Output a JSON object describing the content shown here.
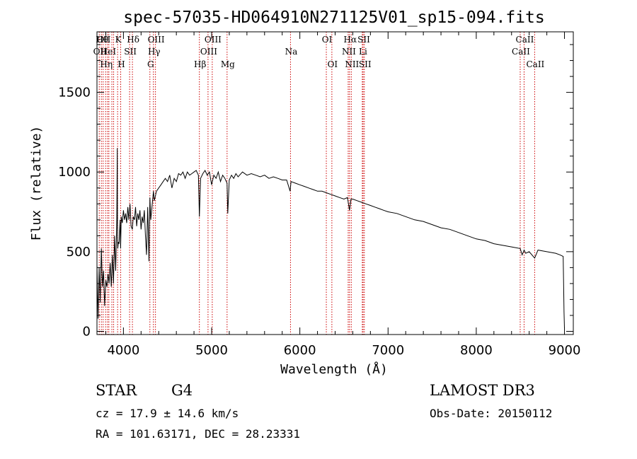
{
  "chart_data": {
    "type": "line",
    "title": "spec-57035-HD064910N271125V01_sp15-094.fits",
    "xlabel": "Wavelength (Å)",
    "ylabel": "Flux (relative)",
    "xlim": [
      3700,
      9100
    ],
    "ylim": [
      -20,
      1880
    ],
    "xticks": [
      4000,
      5000,
      6000,
      7000,
      8000,
      9000
    ],
    "yticks": [
      0,
      500,
      1000,
      1500
    ],
    "xtick_labels": [
      "4000",
      "5000",
      "6000",
      "7000",
      "8000",
      "9000"
    ],
    "ytick_labels": [
      "0",
      "500",
      "1000",
      "1500"
    ],
    "grid": false,
    "series": [
      {
        "name": "spectrum",
        "x": [
          3700,
          3712,
          3725,
          3737,
          3750,
          3762,
          3775,
          3787,
          3800,
          3812,
          3825,
          3837,
          3850,
          3862,
          3875,
          3887,
          3900,
          3912,
          3925,
          3930,
          3933,
          3936,
          3942,
          3950,
          3962,
          3968,
          3975,
          3987,
          4000,
          4012,
          4025,
          4037,
          4050,
          4062,
          4075,
          4087,
          4101,
          4112,
          4125,
          4137,
          4150,
          4162,
          4175,
          4187,
          4200,
          4212,
          4225,
          4237,
          4250,
          4262,
          4275,
          4290,
          4300,
          4310,
          4320,
          4330,
          4340,
          4350,
          4375,
          4400,
          4425,
          4450,
          4475,
          4500,
          4525,
          4550,
          4575,
          4600,
          4625,
          4650,
          4675,
          4700,
          4725,
          4750,
          4775,
          4800,
          4825,
          4850,
          4861,
          4875,
          4900,
          4925,
          4950,
          4975,
          5000,
          5025,
          5050,
          5075,
          5100,
          5125,
          5150,
          5175,
          5183,
          5200,
          5225,
          5250,
          5275,
          5300,
          5350,
          5400,
          5450,
          5500,
          5550,
          5600,
          5650,
          5700,
          5750,
          5800,
          5850,
          5890,
          5900,
          5950,
          6000,
          6050,
          6100,
          6150,
          6200,
          6250,
          6300,
          6350,
          6400,
          6450,
          6500,
          6540,
          6563,
          6580,
          6600,
          6650,
          6700,
          6750,
          6800,
          6850,
          6900,
          6950,
          7000,
          7100,
          7200,
          7300,
          7400,
          7500,
          7600,
          7700,
          7800,
          7900,
          8000,
          8100,
          8200,
          8300,
          8400,
          8498,
          8520,
          8542,
          8560,
          8600,
          8662,
          8700,
          8750,
          8800,
          8850,
          8900,
          8950,
          8985,
          8990,
          8995,
          9000
        ],
        "values": [
          420,
          80,
          400,
          180,
          520,
          280,
          380,
          160,
          320,
          280,
          360,
          300,
          430,
          280,
          480,
          300,
          600,
          380,
          700,
          1150,
          600,
          520,
          560,
          550,
          700,
          520,
          720,
          680,
          760,
          700,
          740,
          680,
          780,
          700,
          800,
          660,
          640,
          720,
          700,
          780,
          660,
          740,
          700,
          760,
          640,
          720,
          680,
          760,
          600,
          480,
          780,
          440,
          840,
          700,
          760,
          820,
          880,
          820,
          880,
          900,
          920,
          940,
          960,
          940,
          980,
          900,
          960,
          940,
          990,
          980,
          1000,
          960,
          1000,
          980,
          990,
          1000,
          1010,
          980,
          720,
          960,
          990,
          1010,
          980,
          1000,
          920,
          980,
          960,
          1000,
          940,
          980,
          960,
          930,
          740,
          950,
          980,
          960,
          990,
          970,
          1000,
          980,
          990,
          980,
          970,
          980,
          960,
          970,
          960,
          950,
          950,
          880,
          940,
          930,
          920,
          910,
          900,
          890,
          880,
          880,
          870,
          860,
          850,
          840,
          830,
          840,
          760,
          830,
          830,
          820,
          810,
          800,
          790,
          780,
          770,
          760,
          750,
          740,
          720,
          700,
          690,
          670,
          650,
          640,
          620,
          600,
          580,
          570,
          550,
          540,
          530,
          520,
          480,
          510,
          490,
          500,
          460,
          510,
          505,
          500,
          495,
          490,
          480,
          470,
          300,
          120,
          20
        ]
      }
    ],
    "line_markers": [
      {
        "wavelength": 3726,
        "label": "OII",
        "row": 2
      },
      {
        "wavelength": 3750,
        "label": "Hθ",
        "row": 1
      },
      {
        "wavelength": 3770,
        "label": "OII",
        "row": 1
      },
      {
        "wavelength": 3798,
        "label": "Hη",
        "row": 3
      },
      {
        "wavelength": 3820,
        "label": "HeI",
        "row": 2
      },
      {
        "wavelength": 3835,
        "label": "",
        "row": 0
      },
      {
        "wavelength": 3869,
        "label": "",
        "row": 0
      },
      {
        "wavelength": 3889,
        "label": "",
        "row": 0
      },
      {
        "wavelength": 3934,
        "label": "K",
        "row": 1
      },
      {
        "wavelength": 3969,
        "label": "H",
        "row": 3
      },
      {
        "wavelength": 4070,
        "label": "SII",
        "row": 2
      },
      {
        "wavelength": 4102,
        "label": "Hδ",
        "row": 1
      },
      {
        "wavelength": 4300,
        "label": "G",
        "row": 3
      },
      {
        "wavelength": 4340,
        "label": "Hγ",
        "row": 2
      },
      {
        "wavelength": 4363,
        "label": "OIII",
        "row": 1
      },
      {
        "wavelength": 4861,
        "label": "Hβ",
        "row": 3
      },
      {
        "wavelength": 4959,
        "label": "OIII",
        "row": 2
      },
      {
        "wavelength": 5007,
        "label": "OIII",
        "row": 1
      },
      {
        "wavelength": 5175,
        "label": "Mg",
        "row": 3
      },
      {
        "wavelength": 5894,
        "label": "Na",
        "row": 2
      },
      {
        "wavelength": 6300,
        "label": "OI",
        "row": 1
      },
      {
        "wavelength": 6363,
        "label": "OI",
        "row": 3
      },
      {
        "wavelength": 6548,
        "label": "NII",
        "row": 2
      },
      {
        "wavelength": 6563,
        "label": "Hα",
        "row": 1
      },
      {
        "wavelength": 6583,
        "label": "NII",
        "row": 3
      },
      {
        "wavelength": 6708,
        "label": "Li",
        "row": 2
      },
      {
        "wavelength": 6717,
        "label": "SII",
        "row": 1
      },
      {
        "wavelength": 6731,
        "label": "SII",
        "row": 3
      },
      {
        "wavelength": 8498,
        "label": "CaII",
        "row": 2
      },
      {
        "wavelength": 8542,
        "label": "CaII",
        "row": 1
      },
      {
        "wavelength": 8662,
        "label": "CaII",
        "row": 3
      }
    ],
    "colors": {
      "spectrum": "#000000",
      "markers": "#cc0000",
      "axes": "#000000"
    }
  },
  "info": {
    "object_type": "STAR",
    "subclass": "G4",
    "survey": "LAMOST DR3",
    "cz": "cz = 17.9 ± 14.6 km/s",
    "obs_date": "Obs-Date: 20150112",
    "coords": "RA = 101.63171, DEC =  28.23331"
  }
}
